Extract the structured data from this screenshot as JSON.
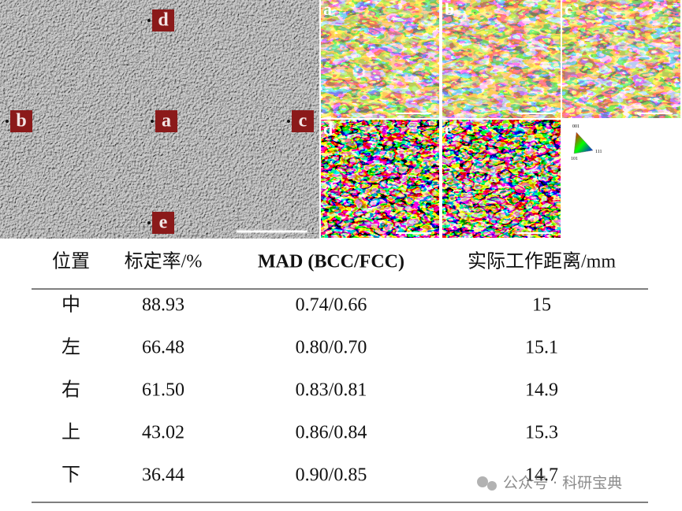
{
  "figure": {
    "sem_markers": [
      "d",
      "b",
      "a",
      "c",
      "e"
    ],
    "ebsd_panels": [
      "a",
      "b",
      "c",
      "d",
      "e"
    ],
    "ipf_legend": [
      "001",
      "101",
      "111"
    ]
  },
  "table": {
    "header": [
      "位置",
      "标定率/%",
      "MAD (BCC/FCC)",
      "实际工作距离/mm"
    ],
    "rows": [
      [
        "中",
        "88.93",
        "0.74/0.66",
        "15"
      ],
      [
        "左",
        "66.48",
        "0.80/0.70",
        "15.1"
      ],
      [
        "右",
        "61.50",
        "0.83/0.81",
        "14.9"
      ],
      [
        "上",
        "43.02",
        "0.86/0.84",
        "15.3"
      ],
      [
        "下",
        "36.44",
        "0.90/0.85",
        "14.7"
      ]
    ]
  },
  "watermark": "公众号 · 科研宝典"
}
